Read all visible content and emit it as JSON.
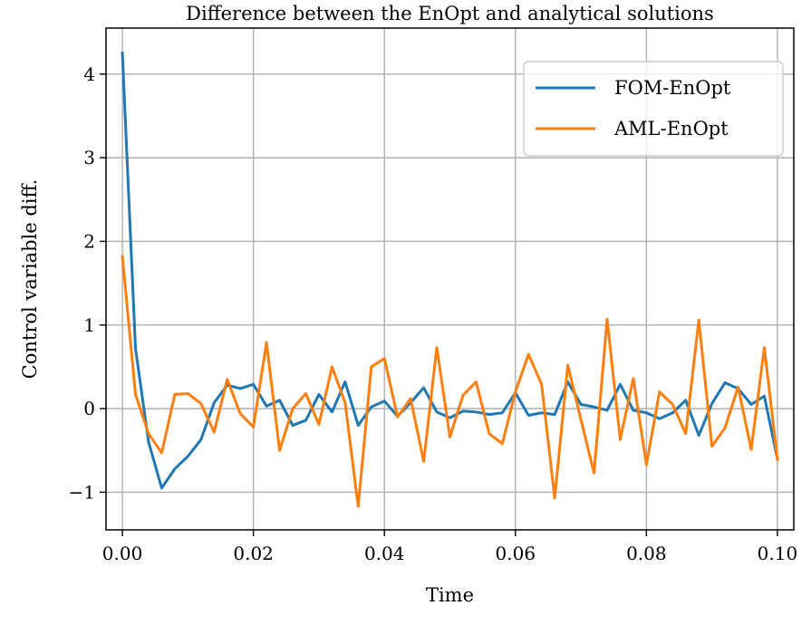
{
  "chart_data": {
    "type": "line",
    "title": "Difference between the EnOpt and analytical solutions",
    "xlabel": "Time",
    "ylabel": "Control variable diff.",
    "xlim": [
      -0.0025,
      0.1025
    ],
    "ylim": [
      -1.45,
      4.55
    ],
    "xticks": [
      0.0,
      0.02,
      0.04,
      0.06,
      0.08,
      0.1
    ],
    "xtick_labels": [
      "0.00",
      "0.02",
      "0.04",
      "0.06",
      "0.08",
      "0.10"
    ],
    "yticks": [
      -1,
      0,
      1,
      2,
      3,
      4
    ],
    "ytick_labels": [
      "−1",
      "0",
      "1",
      "2",
      "3",
      "4"
    ],
    "grid": true,
    "legend_position": "top-right",
    "x": [
      0.0,
      0.002,
      0.004,
      0.006,
      0.008,
      0.01,
      0.012,
      0.014,
      0.016,
      0.018,
      0.02,
      0.022,
      0.024,
      0.026,
      0.028,
      0.03,
      0.032,
      0.034,
      0.036,
      0.038,
      0.04,
      0.042,
      0.044,
      0.046,
      0.048,
      0.05,
      0.052,
      0.054,
      0.056,
      0.058,
      0.06,
      0.062,
      0.064,
      0.066,
      0.068,
      0.07,
      0.072,
      0.074,
      0.076,
      0.078,
      0.08,
      0.082,
      0.084,
      0.086,
      0.088,
      0.09,
      0.092,
      0.094,
      0.096,
      0.098,
      0.1
    ],
    "series": [
      {
        "name": "FOM-EnOpt",
        "color": "#1f77b4",
        "values": [
          4.25,
          0.72,
          -0.4,
          -0.95,
          -0.72,
          -0.57,
          -0.37,
          0.07,
          0.28,
          0.24,
          0.29,
          0.03,
          0.1,
          -0.2,
          -0.14,
          0.17,
          -0.04,
          0.32,
          -0.2,
          0.02,
          0.09,
          -0.09,
          0.07,
          0.25,
          -0.04,
          -0.11,
          -0.03,
          -0.04,
          -0.07,
          -0.05,
          0.19,
          -0.08,
          -0.05,
          -0.07,
          0.32,
          0.05,
          0.02,
          -0.02,
          0.29,
          -0.02,
          -0.05,
          -0.12,
          -0.05,
          0.1,
          -0.32,
          0.06,
          0.31,
          0.24,
          0.05,
          0.15,
          -0.6
        ]
      },
      {
        "name": "AML-EnOpt",
        "color": "#ff7f0e",
        "values": [
          1.82,
          0.17,
          -0.3,
          -0.53,
          0.17,
          0.18,
          0.06,
          -0.28,
          0.35,
          -0.06,
          -0.22,
          0.79,
          -0.5,
          0.0,
          0.18,
          -0.19,
          0.5,
          0.07,
          -1.17,
          0.5,
          0.6,
          -0.1,
          0.12,
          -0.63,
          0.73,
          -0.34,
          0.16,
          0.32,
          -0.3,
          -0.42,
          0.2,
          0.65,
          0.29,
          -1.07,
          0.52,
          -0.13,
          -0.77,
          1.07,
          -0.37,
          0.36,
          -0.67,
          0.2,
          0.05,
          -0.3,
          1.06,
          -0.45,
          -0.23,
          0.26,
          -0.49,
          0.73,
          -0.61
        ]
      }
    ]
  }
}
